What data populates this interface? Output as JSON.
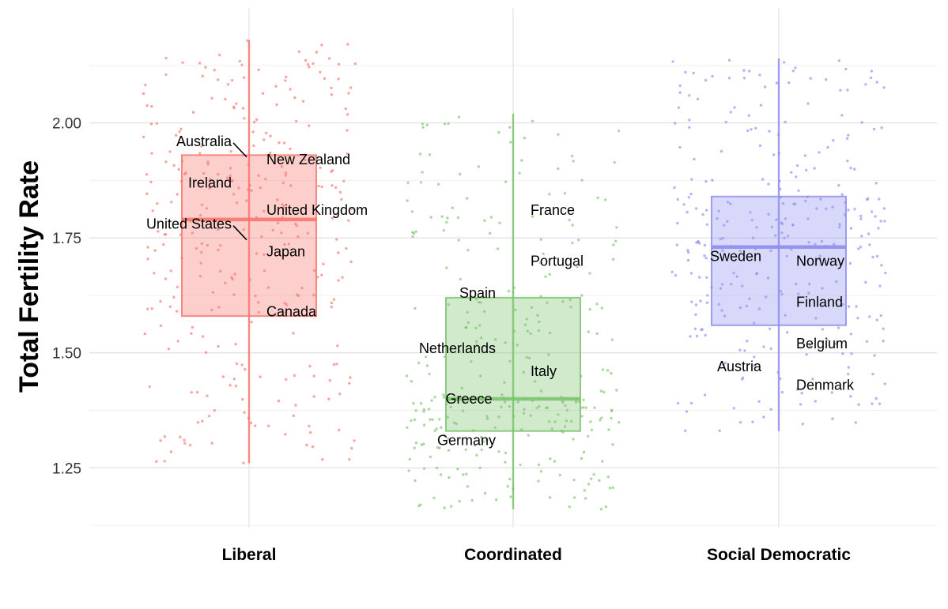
{
  "chart_data": {
    "type": "boxplot",
    "ylabel": "Total Fertility Rate",
    "xlabel": "",
    "ylim": [
      1.12,
      2.25
    ],
    "yticks": [
      1.25,
      1.5,
      1.75,
      2.0
    ],
    "ytick_labels": [
      "1.25",
      "1.50",
      "1.75",
      "2.00"
    ],
    "grid": true,
    "legend": "none",
    "categories": [
      "Liberal",
      "Coordinated",
      "Social Democratic"
    ],
    "groups": [
      {
        "name": "Liberal",
        "color": "#F8766D",
        "box": {
          "min": 1.26,
          "q1": 1.58,
          "median": 1.79,
          "q3": 1.93,
          "max": 2.18
        },
        "labels": [
          {
            "text": "Australia",
            "y": 1.96,
            "side": "left",
            "leader": true
          },
          {
            "text": "New Zealand",
            "y": 1.92,
            "side": "right"
          },
          {
            "text": "Ireland",
            "y": 1.87,
            "side": "left"
          },
          {
            "text": "United States",
            "y": 1.78,
            "side": "left",
            "leader": true
          },
          {
            "text": "United Kingdom",
            "y": 1.81,
            "side": "right"
          },
          {
            "text": "Japan",
            "y": 1.72,
            "side": "right"
          },
          {
            "text": "Canada",
            "y": 1.59,
            "side": "right"
          }
        ],
        "points_n": 300
      },
      {
        "name": "Coordinated",
        "color": "#7CC36E",
        "box": {
          "min": 1.16,
          "q1": 1.33,
          "median": 1.4,
          "q3": 1.62,
          "max": 2.02
        },
        "labels": [
          {
            "text": "France",
            "y": 1.81,
            "side": "right"
          },
          {
            "text": "Portugal",
            "y": 1.7,
            "side": "right"
          },
          {
            "text": "Spain",
            "y": 1.63,
            "side": "left"
          },
          {
            "text": "Netherlands",
            "y": 1.51,
            "side": "left"
          },
          {
            "text": "Italy",
            "y": 1.46,
            "side": "right"
          },
          {
            "text": "Greece",
            "y": 1.4,
            "side": "center"
          },
          {
            "text": "Germany",
            "y": 1.31,
            "side": "left"
          }
        ],
        "points_n": 300
      },
      {
        "name": "Social Democratic",
        "color": "#8E8EF0",
        "box": {
          "min": 1.33,
          "q1": 1.56,
          "median": 1.73,
          "q3": 1.84,
          "max": 2.14
        },
        "labels": [
          {
            "text": "Sweden",
            "y": 1.71,
            "side": "left"
          },
          {
            "text": "Norway",
            "y": 1.7,
            "side": "right"
          },
          {
            "text": "Finland",
            "y": 1.61,
            "side": "right"
          },
          {
            "text": "Belgium",
            "y": 1.52,
            "side": "right"
          },
          {
            "text": "Austria",
            "y": 1.47,
            "side": "left"
          },
          {
            "text": "Denmark",
            "y": 1.43,
            "side": "right"
          }
        ],
        "points_n": 300
      }
    ]
  }
}
